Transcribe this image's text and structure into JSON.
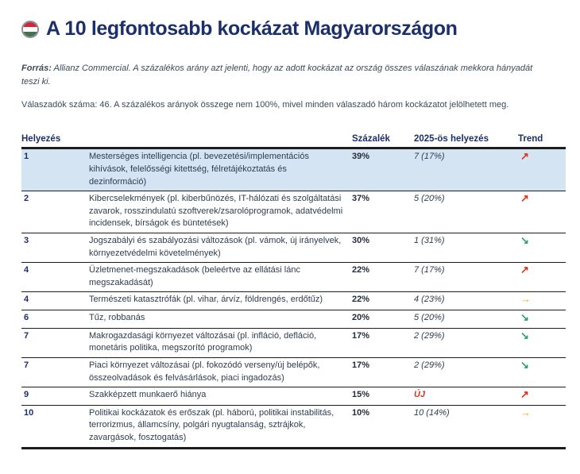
{
  "page": {
    "title": "A 10 legfontosabb kockázat Magyarországon"
  },
  "notes": {
    "source_label": "Forrás:",
    "source_text": " Allianz Commercial. A százalékos arány azt jelenti, hogy az adott kockázat az ország összes válaszának mekkora hányadát teszi ki.",
    "respondents": "Válaszadók száma: 46. A százalékos arányok összege nem 100%, mivel minden válaszadó három kockázatot jelölhetett meg."
  },
  "colors": {
    "accent_navy": "#1b2f69",
    "trend_up_red": "#e0301e",
    "trend_down_green": "#2f9e68",
    "trend_flat_amber": "#f5a800",
    "highlight_row_blue": "#d4e4f3",
    "flag_red": "#ce2939",
    "flag_white": "#ffffff",
    "flag_green": "#477050"
  },
  "table": {
    "headers": {
      "rank": "Helyezés",
      "risk": "",
      "percent": "Százalék",
      "prev": "2025-ös helyezés",
      "trend": "Trend"
    },
    "rows": [
      {
        "rank": "1",
        "risk": "Mesterséges intelligencia (pl. bevezetési/implementációs kihívások, felelősségi kitettség, félretájékoztatás és dezinformáció)",
        "percent": "39%",
        "prev": "7 (17%)",
        "prev_new": "false",
        "trend": "up",
        "trend_glyph": "↗",
        "highlight": "true"
      },
      {
        "rank": "2",
        "risk": "Kibercselekmények (pl. kiberbűnözés, IT-hálózati és szolgáltatási zavarok, rosszindulatú szoftverek/zsarolóprogramok, adatvédelmi incidensek, bírságok és büntetések)",
        "percent": "37%",
        "prev": "5 (20%)",
        "prev_new": "false",
        "trend": "up",
        "trend_glyph": "↗",
        "highlight": "false"
      },
      {
        "rank": "3",
        "risk": "Jogszabályi és szabályozási változások (pl. vámok, új irányelvek, környezetvédelmi követelmények)",
        "percent": "30%",
        "prev": "1 (31%)",
        "prev_new": "false",
        "trend": "down",
        "trend_glyph": "↘",
        "highlight": "false"
      },
      {
        "rank": "4",
        "risk": "Üzletmenet-megszakadások (beleértve az ellátási lánc megszakadását)",
        "percent": "22%",
        "prev": "7 (17%)",
        "prev_new": "false",
        "trend": "up",
        "trend_glyph": "↗",
        "highlight": "false"
      },
      {
        "rank": "4",
        "risk": "Természeti katasztrófák (pl. vihar, árvíz, földrengés, erdőtűz)",
        "percent": "22%",
        "prev": "4 (23%)",
        "prev_new": "false",
        "trend": "flat",
        "trend_glyph": "→",
        "highlight": "false"
      },
      {
        "rank": "6",
        "risk": "Tűz, robbanás",
        "percent": "20%",
        "prev": "5 (20%)",
        "prev_new": "false",
        "trend": "down",
        "trend_glyph": "↘",
        "highlight": "false"
      },
      {
        "rank": "7",
        "risk": "Makrogazdasági környezet változásai (pl. infláció, defláció, monetáris politika, megszorító programok)",
        "percent": "17%",
        "prev": "2 (29%)",
        "prev_new": "false",
        "trend": "down",
        "trend_glyph": "↘",
        "highlight": "false"
      },
      {
        "rank": "7",
        "risk": "Piaci környezet változásai (pl. fokozódó verseny/új belépők, összeolvadások és felvásárlások, piaci ingadozás)",
        "percent": "17%",
        "prev": "2 (29%)",
        "prev_new": "false",
        "trend": "down",
        "trend_glyph": "↘",
        "highlight": "false"
      },
      {
        "rank": "9",
        "risk": "Szakképzett munkaerő hiánya",
        "percent": "15%",
        "prev": "ÚJ",
        "prev_new": "true",
        "trend": "up",
        "trend_glyph": "↗",
        "highlight": "false"
      },
      {
        "rank": "10",
        "risk": "Politikai kockázatok és erőszak (pl. háború, politikai instabilitás, terrorizmus, államcsíny, polgári nyugtalanság, sztrájkok, zavargások, fosztogatás)",
        "percent": "10%",
        "prev": "10 (14%)",
        "prev_new": "false",
        "trend": "flat",
        "trend_glyph": "→",
        "highlight": "false"
      }
    ]
  }
}
